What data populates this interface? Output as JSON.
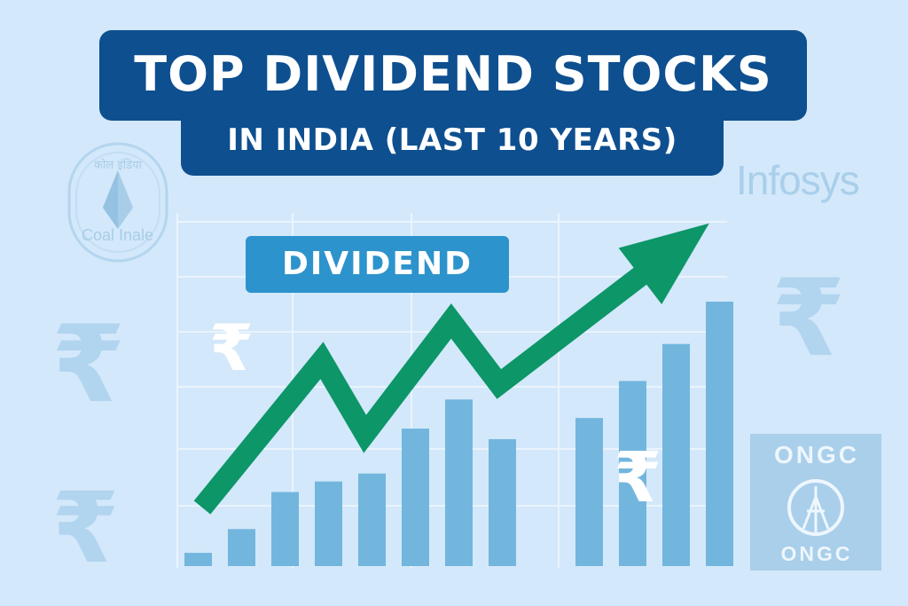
{
  "title": {
    "line1": "TOP DIVIDEND STOCKS",
    "line2": "IN INDIA (LAST 10 YEARS)"
  },
  "badge_label": "DIVIDEND",
  "logos": {
    "coal_india": "Coal Inale",
    "infosys": "Infosys",
    "ongc_top": "ONGC",
    "ongc_bottom": "ONGC"
  },
  "currency_symbol": "₹",
  "bars": [
    5,
    14,
    28,
    32,
    35,
    52,
    63,
    48,
    0,
    56,
    70,
    84,
    100
  ],
  "trend_points": [
    [
      0,
      0
    ],
    [
      25,
      56
    ],
    [
      34,
      28
    ],
    [
      52,
      71
    ],
    [
      62,
      47
    ],
    [
      100,
      100
    ]
  ],
  "colors": {
    "background": "#d3e8fa",
    "title_bg": "#0e4f8f",
    "badge_bg": "#2d93cc",
    "bar": "#72b6de",
    "arrow": "#0d9668",
    "watermark": "#a9cfea"
  },
  "icons": [
    "coal-india-logo-icon",
    "infosys-logo",
    "ongc-logo-icon",
    "rupee-icon",
    "up-trend-arrow-icon"
  ]
}
